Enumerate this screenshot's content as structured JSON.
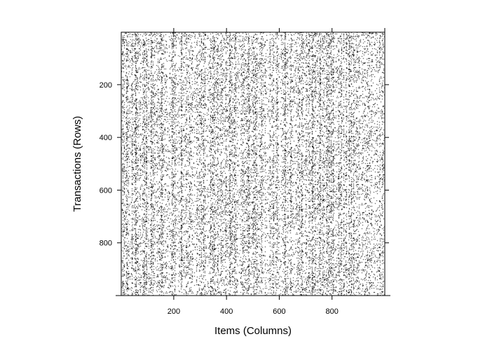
{
  "chart_data": {
    "type": "heatmap",
    "subtype": "binary-matrix-image",
    "title": "",
    "xlabel": "Items (Columns)",
    "ylabel": "Transactions (Rows)",
    "xlim": [
      1,
      1000
    ],
    "ylim": [
      1,
      1000
    ],
    "y_axis_direction": "top-to-bottom",
    "x_ticks": [
      200,
      400,
      600,
      800
    ],
    "y_ticks": [
      200,
      400,
      600,
      800
    ],
    "x_tick_labels": [
      "200",
      "400",
      "600",
      "800"
    ],
    "y_tick_labels": [
      "200",
      "400",
      "600",
      "800"
    ],
    "n_rows": 1000,
    "n_columns": 1000,
    "cell_values": [
      0,
      1
    ],
    "colors": {
      "present": "#000000",
      "absent": "#ffffff"
    },
    "approx_density": 0.12,
    "grid": false,
    "legend": "none"
  }
}
